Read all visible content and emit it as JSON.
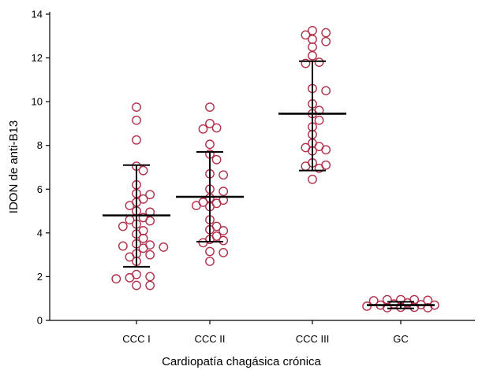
{
  "chart_data": {
    "type": "scatter",
    "xlabel": "Cardiopatía chagásica crónica",
    "ylabel": "IDON de anti-B13",
    "ylim": [
      0,
      14
    ],
    "yticks": [
      0,
      2,
      4,
      6,
      8,
      10,
      12,
      14
    ],
    "categories": [
      "CCC I",
      "CCC II",
      "CCC III",
      "GC"
    ],
    "marker_color": "#b0304a",
    "groups": [
      {
        "category": "CCC I",
        "mean": 4.8,
        "sd_low": 2.45,
        "sd_high": 7.1,
        "values": [
          9.75,
          9.15,
          8.25,
          7.05,
          6.85,
          6.2,
          5.8,
          5.75,
          5.55,
          5.4,
          5.25,
          5.0,
          4.95,
          4.7,
          4.6,
          4.55,
          4.4,
          4.3,
          4.1,
          3.95,
          3.75,
          3.5,
          3.45,
          3.4,
          3.35,
          3.3,
          3.05,
          3.0,
          2.9,
          2.7,
          2.1,
          2.0,
          1.95,
          1.9,
          1.6,
          1.6
        ]
      },
      {
        "category": "CCC II",
        "mean": 5.65,
        "sd_low": 3.6,
        "sd_high": 7.7,
        "values": [
          9.75,
          9.0,
          8.8,
          8.75,
          8.05,
          7.6,
          7.35,
          6.7,
          6.65,
          6.0,
          5.9,
          5.6,
          5.5,
          5.4,
          5.35,
          5.25,
          5.2,
          4.6,
          4.3,
          4.15,
          4.1,
          3.85,
          3.7,
          3.65,
          3.55,
          3.15,
          3.1,
          2.7
        ]
      },
      {
        "category": "CCC III",
        "mean": 9.45,
        "sd_low": 6.85,
        "sd_high": 11.85,
        "values": [
          13.25,
          13.15,
          13.05,
          12.85,
          12.75,
          12.5,
          12.1,
          11.8,
          11.75,
          10.6,
          10.5,
          9.9,
          9.6,
          9.45,
          9.15,
          8.85,
          8.5,
          8.1,
          7.95,
          7.9,
          7.8,
          7.75,
          7.2,
          7.1,
          7.05,
          6.95,
          6.45
        ]
      },
      {
        "category": "GC",
        "mean": 0.7,
        "sd_low": 0.55,
        "sd_high": 0.85,
        "values": [
          0.95,
          0.95,
          0.95,
          0.92,
          0.9,
          0.8,
          0.75,
          0.72,
          0.7,
          0.7,
          0.65,
          0.6,
          0.6,
          0.58,
          0.58
        ]
      }
    ]
  }
}
